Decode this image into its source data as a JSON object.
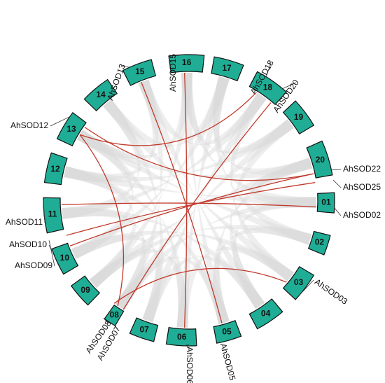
{
  "chromosomes": [
    "01",
    "02",
    "03",
    "04",
    "05",
    "06",
    "07",
    "08",
    "09",
    "10",
    "11",
    "12",
    "13",
    "14",
    "15",
    "16",
    "17",
    "18",
    "19",
    "20"
  ],
  "genes": [
    "AhSOD02",
    "AhSOD22",
    "AhSOD25",
    "AhSOD20",
    "AhSOD18",
    "AhSOD15",
    "AhSOD13",
    "AhSOD12",
    "AhSOD11",
    "AhSOD10",
    "AhSOD09",
    "AhSOD08",
    "AhSOD07",
    "AhSOD06",
    "AhSOD05",
    "AhSOD03"
  ]
}
